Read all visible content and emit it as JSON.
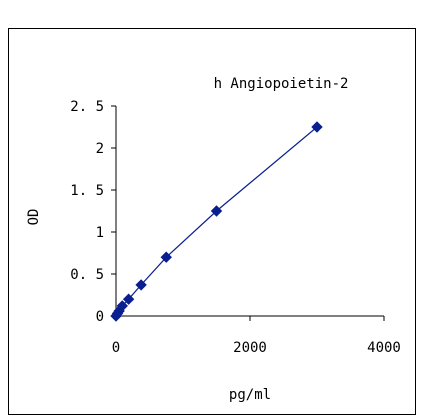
{
  "chart_data": {
    "type": "scatter",
    "title": "h Angiopoietin-2",
    "xlabel": "pg/ml",
    "ylabel": "OD",
    "xlim": [
      0,
      4000
    ],
    "ylim": [
      0,
      2.5
    ],
    "x_ticks": [
      0,
      2000,
      4000
    ],
    "x_tick_labels": [
      "0",
      "2000",
      "4000"
    ],
    "y_ticks": [
      0,
      0.5,
      1,
      1.5,
      2,
      2.5
    ],
    "y_tick_labels": [
      "0",
      "0. 5",
      "1",
      "1. 5",
      "2",
      "2. 5"
    ],
    "grid": false,
    "legend": "none",
    "series": [
      {
        "x": [
          0,
          23,
          47,
          94,
          188,
          375,
          750,
          1500,
          3000
        ],
        "y": [
          0.0,
          0.03,
          0.06,
          0.12,
          0.2,
          0.37,
          0.7,
          1.25,
          2.25
        ],
        "marker": "diamond",
        "line": "fit",
        "color": "#0a1f8f"
      }
    ]
  }
}
